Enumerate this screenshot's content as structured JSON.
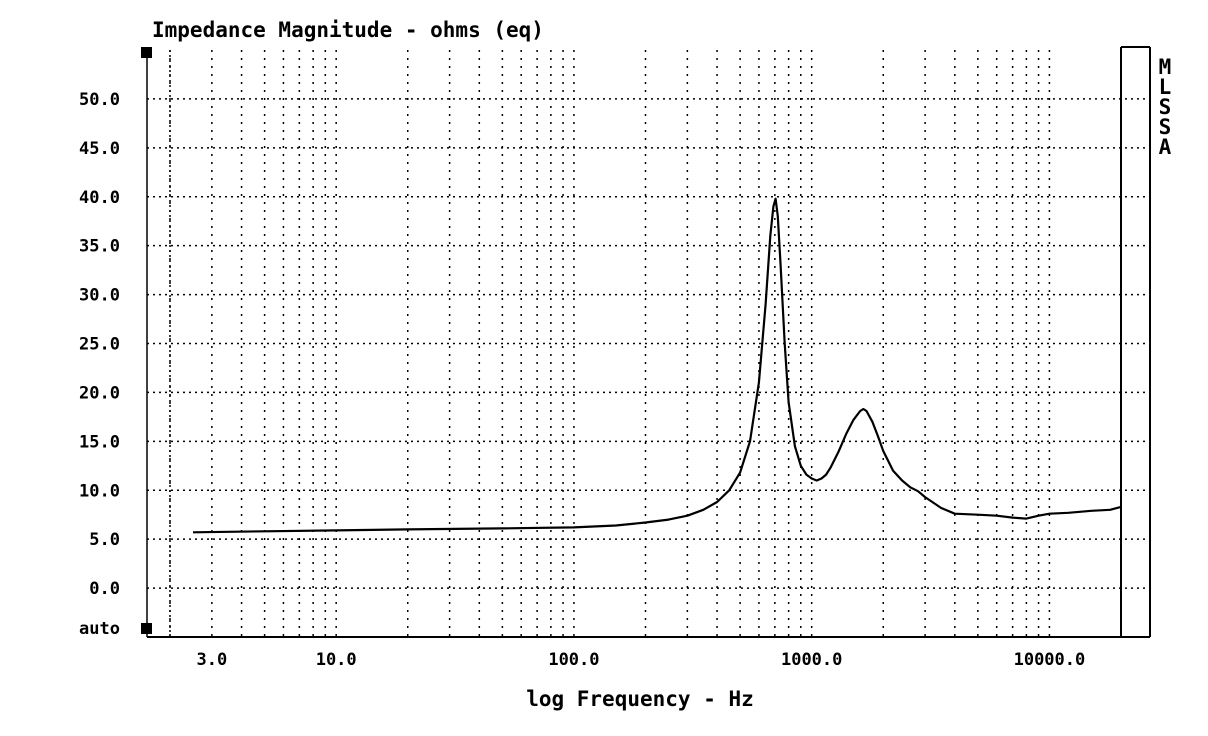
{
  "chart_data": {
    "type": "line",
    "title": "Impedance Magnitude - ohms (eq)",
    "xlabel": "log Frequency - Hz",
    "ylabel": "",
    "x_scale": "log",
    "xlim": [
      2,
      20000
    ],
    "ylim": [
      -5,
      55
    ],
    "x_ticks": [
      3,
      10,
      100,
      1000,
      10000
    ],
    "x_tick_labels": [
      "3.0",
      "10.0",
      "100.0",
      "1000.0",
      "10000.0"
    ],
    "y_ticks": [
      0,
      5,
      10,
      15,
      20,
      25,
      30,
      35,
      40,
      45,
      50
    ],
    "y_tick_labels": [
      "0.0",
      "5.0",
      "10.0",
      "15.0",
      "20.0",
      "25.0",
      "30.0",
      "35.0",
      "40.0",
      "45.0",
      "50.0"
    ],
    "y_bottom_label": "auto",
    "side_label": [
      "M",
      "L",
      "S",
      "S",
      "A"
    ],
    "grid": true,
    "series": [
      {
        "x": [
          2.5,
          5,
          10,
          20,
          50,
          100,
          150,
          200,
          250,
          300,
          350,
          400,
          450,
          500,
          550,
          600,
          640,
          670,
          690,
          705,
          720,
          740,
          770,
          800,
          850,
          900,
          950,
          1000,
          1050,
          1100,
          1150,
          1200,
          1300,
          1400,
          1500,
          1600,
          1650,
          1700,
          1800,
          1900,
          2000,
          2200,
          2400,
          2600,
          2800,
          3000,
          3500,
          4000,
          5000,
          6000,
          7000,
          8000,
          9000,
          10000,
          12000,
          15000,
          18000,
          20000
        ],
        "y": [
          5.7,
          5.8,
          5.9,
          6.0,
          6.1,
          6.2,
          6.4,
          6.7,
          7.0,
          7.4,
          8.0,
          8.8,
          10.0,
          11.8,
          15.0,
          21.0,
          29.0,
          36.0,
          39.0,
          39.8,
          38.0,
          33.0,
          25.0,
          19.0,
          14.5,
          12.5,
          11.6,
          11.2,
          11.0,
          11.2,
          11.6,
          12.3,
          14.0,
          15.8,
          17.2,
          18.1,
          18.3,
          18.1,
          17.0,
          15.5,
          14.0,
          12.0,
          11.0,
          10.3,
          9.9,
          9.3,
          8.2,
          7.6,
          7.5,
          7.4,
          7.2,
          7.1,
          7.4,
          7.6,
          7.7,
          7.9,
          8.0,
          8.3
        ]
      }
    ]
  }
}
